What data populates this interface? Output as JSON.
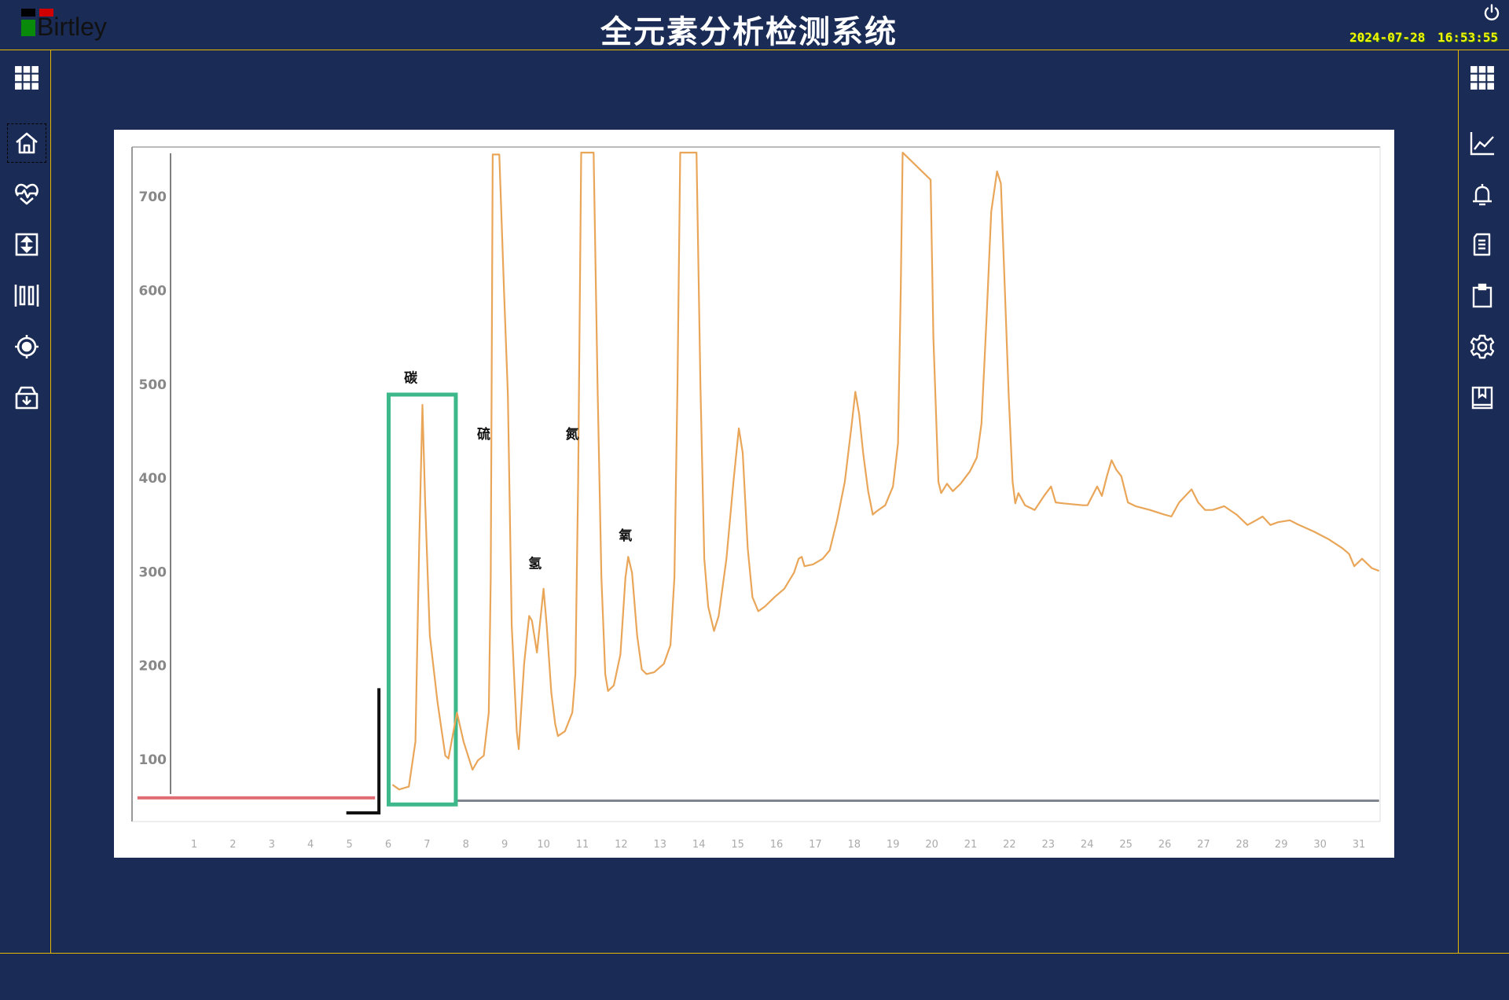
{
  "header": {
    "logo_text": "Birtley",
    "title": "全元素分析检测系统",
    "datetime": "2024-07-28  16:53:55",
    "power_icon": "power-icon"
  },
  "left_nav": [
    {
      "icon": "grid-icon"
    },
    {
      "icon": "home-icon",
      "focused": true
    },
    {
      "icon": "heart-pulse-icon"
    },
    {
      "icon": "vertical-arrows-icon"
    },
    {
      "icon": "barcode-columns-icon"
    },
    {
      "icon": "target-icon"
    },
    {
      "icon": "archive-download-icon"
    }
  ],
  "right_nav": [
    {
      "icon": "grid-icon"
    },
    {
      "icon": "line-chart-icon"
    },
    {
      "icon": "bell-icon"
    },
    {
      "icon": "document-icon"
    },
    {
      "icon": "clipboard-icon"
    },
    {
      "icon": "gear-icon"
    },
    {
      "icon": "bookmark-book-icon"
    }
  ],
  "colors": {
    "background": "#1a2b56",
    "border": "#e6b800",
    "curve": "#e9a659",
    "highlight_box": "#3cb88a",
    "baseline_red": "#d9535a",
    "baseline_gray": "#6a6f7a",
    "datetime": "#f4f40a"
  },
  "chart_data": {
    "type": "line",
    "title": "",
    "xlabel": "",
    "ylabel": "",
    "xlim": [
      -0.6,
      31.6
    ],
    "ylim": [
      40,
      752
    ],
    "grid": false,
    "y_ticks": [
      100,
      200,
      300,
      400,
      500,
      600,
      700
    ],
    "x_ticks": [
      1,
      2,
      3,
      4,
      5,
      6,
      7,
      8,
      9,
      10,
      11,
      12,
      13,
      14,
      15,
      16,
      17,
      18,
      19,
      20,
      21,
      22,
      23,
      24,
      25,
      26,
      27,
      28,
      29,
      30,
      31
    ],
    "series": [
      {
        "points": [
          [
            6.11,
            73
          ],
          [
            6.28,
            68
          ],
          [
            6.53,
            71
          ],
          [
            6.7,
            119
          ],
          [
            6.8,
            335
          ],
          [
            6.88,
            478
          ],
          [
            6.95,
            376
          ],
          [
            7.07,
            232
          ],
          [
            7.27,
            161
          ],
          [
            7.47,
            104
          ],
          [
            7.55,
            101
          ],
          [
            7.77,
            150
          ],
          [
            7.94,
            119
          ],
          [
            8.17,
            89
          ],
          [
            8.31,
            99
          ],
          [
            8.46,
            104
          ],
          [
            8.59,
            150
          ],
          [
            8.64,
            294
          ],
          [
            8.69,
            745
          ],
          [
            8.86,
            745
          ],
          [
            8.98,
            602
          ],
          [
            9.08,
            489
          ],
          [
            9.18,
            243
          ],
          [
            9.31,
            130
          ],
          [
            9.36,
            111
          ],
          [
            9.5,
            202
          ],
          [
            9.63,
            253
          ],
          [
            9.7,
            248
          ],
          [
            9.83,
            214
          ],
          [
            10.0,
            282
          ],
          [
            10.08,
            243
          ],
          [
            10.2,
            171
          ],
          [
            10.3,
            138
          ],
          [
            10.37,
            125
          ],
          [
            10.55,
            130
          ],
          [
            10.74,
            150
          ],
          [
            10.82,
            191
          ],
          [
            10.89,
            396
          ],
          [
            10.97,
            747
          ],
          [
            11.29,
            747
          ],
          [
            11.39,
            499
          ],
          [
            11.49,
            294
          ],
          [
            11.59,
            191
          ],
          [
            11.66,
            173
          ],
          [
            11.81,
            179
          ],
          [
            11.98,
            212
          ],
          [
            12.11,
            294
          ],
          [
            12.18,
            316
          ],
          [
            12.28,
            299
          ],
          [
            12.41,
            232
          ],
          [
            12.53,
            196
          ],
          [
            12.65,
            191
          ],
          [
            12.85,
            193
          ],
          [
            13.1,
            202
          ],
          [
            13.27,
            222
          ],
          [
            13.37,
            294
          ],
          [
            13.45,
            499
          ],
          [
            13.52,
            747
          ],
          [
            13.94,
            747
          ],
          [
            14.04,
            499
          ],
          [
            14.14,
            314
          ],
          [
            14.24,
            263
          ],
          [
            14.39,
            237
          ],
          [
            14.51,
            253
          ],
          [
            14.71,
            314
          ],
          [
            14.89,
            396
          ],
          [
            15.03,
            453
          ],
          [
            15.13,
            427
          ],
          [
            15.26,
            325
          ],
          [
            15.38,
            273
          ],
          [
            15.53,
            258
          ],
          [
            15.7,
            263
          ],
          [
            15.95,
            273
          ],
          [
            16.2,
            282
          ],
          [
            16.45,
            299
          ],
          [
            16.57,
            314
          ],
          [
            16.65,
            316
          ],
          [
            16.72,
            306
          ],
          [
            16.94,
            308
          ],
          [
            17.19,
            314
          ],
          [
            17.37,
            323
          ],
          [
            17.56,
            355
          ],
          [
            17.76,
            396
          ],
          [
            17.94,
            458
          ],
          [
            18.03,
            492
          ],
          [
            18.13,
            468
          ],
          [
            18.23,
            427
          ],
          [
            18.36,
            386
          ],
          [
            18.48,
            361
          ],
          [
            18.56,
            364
          ],
          [
            18.8,
            371
          ],
          [
            19.0,
            391
          ],
          [
            19.13,
            437
          ],
          [
            19.2,
            602
          ],
          [
            19.25,
            747
          ],
          [
            19.97,
            718
          ],
          [
            20.04,
            550
          ],
          [
            20.17,
            396
          ],
          [
            20.24,
            384
          ],
          [
            20.39,
            394
          ],
          [
            20.54,
            386
          ],
          [
            20.74,
            394
          ],
          [
            20.98,
            407
          ],
          [
            21.16,
            422
          ],
          [
            21.28,
            458
          ],
          [
            21.41,
            571
          ],
          [
            21.53,
            684
          ],
          [
            21.68,
            727
          ],
          [
            21.78,
            714
          ],
          [
            21.88,
            602
          ],
          [
            21.98,
            489
          ],
          [
            22.08,
            396
          ],
          [
            22.15,
            373
          ],
          [
            22.23,
            384
          ],
          [
            22.4,
            371
          ],
          [
            22.65,
            366
          ],
          [
            22.89,
            381
          ],
          [
            23.07,
            391
          ],
          [
            23.19,
            374
          ],
          [
            23.39,
            373
          ],
          [
            23.89,
            371
          ],
          [
            24.01,
            371
          ],
          [
            24.26,
            391
          ],
          [
            24.38,
            381
          ],
          [
            24.51,
            402
          ],
          [
            24.63,
            419
          ],
          [
            24.75,
            409
          ],
          [
            24.88,
            402
          ],
          [
            25.05,
            374
          ],
          [
            25.25,
            370
          ],
          [
            25.62,
            366
          ],
          [
            25.99,
            361
          ],
          [
            26.17,
            359
          ],
          [
            26.37,
            374
          ],
          [
            26.69,
            388
          ],
          [
            26.86,
            374
          ],
          [
            27.04,
            366
          ],
          [
            27.23,
            366
          ],
          [
            27.53,
            370
          ],
          [
            27.85,
            361
          ],
          [
            28.13,
            350
          ],
          [
            28.35,
            355
          ],
          [
            28.52,
            359
          ],
          [
            28.72,
            350
          ],
          [
            28.92,
            353
          ],
          [
            29.22,
            355
          ],
          [
            29.46,
            350
          ],
          [
            29.84,
            343
          ],
          [
            30.21,
            335
          ],
          [
            30.58,
            325
          ],
          [
            30.75,
            319
          ],
          [
            30.88,
            306
          ],
          [
            31.08,
            314
          ],
          [
            31.33,
            304
          ],
          [
            31.52,
            301
          ]
        ]
      }
    ],
    "baselines": [
      {
        "color": "#d9535a",
        "x": [
          -0.46,
          5.66
        ],
        "y": 59
      },
      {
        "color": "#6a6f7a",
        "x": [
          7.77,
          31.52
        ],
        "y": 56
      }
    ],
    "marker_bracket": {
      "x": [
        4.92,
        5.76
      ],
      "y": [
        43,
        176
      ]
    },
    "highlight_box": {
      "x": [
        6.01,
        7.74
      ],
      "y": [
        52,
        489
      ]
    },
    "annotations": [
      {
        "text": "碳",
        "x": 6.58,
        "y": 502
      },
      {
        "text": "硫",
        "x": 8.46,
        "y": 442
      },
      {
        "text": "氮",
        "x": 10.74,
        "y": 442
      },
      {
        "text": "氢",
        "x": 9.78,
        "y": 304
      },
      {
        "text": "氧",
        "x": 12.11,
        "y": 334
      }
    ]
  }
}
